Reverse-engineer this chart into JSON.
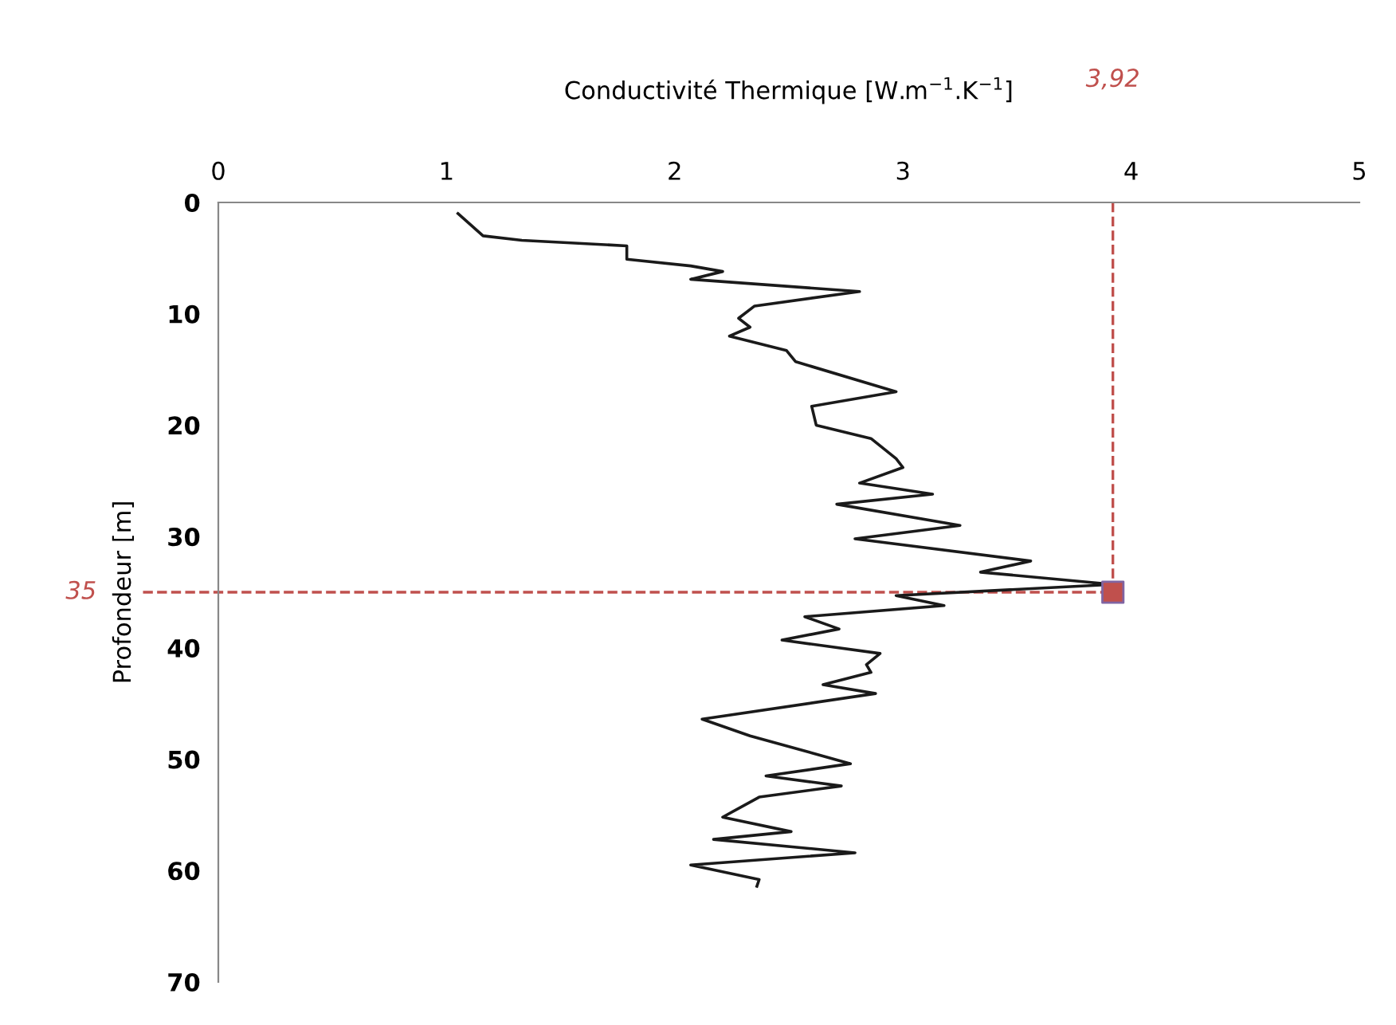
{
  "chart_data": {
    "type": "line",
    "xlabel": "Conductivité Thermique [W.m$^{−1}$.K$^{−1}$]",
    "ylabel": "Profondeur [m]",
    "xlim": [
      0,
      5
    ],
    "xticks": [
      0,
      1,
      2,
      3,
      4,
      5
    ],
    "ylim": [
      70,
      0
    ],
    "yticks": [
      0,
      10,
      20,
      30,
      40,
      50,
      60,
      70
    ],
    "grid": false,
    "marker": "none",
    "series": [
      {
        "color": "#1a1a1a",
        "x": [
          1.05,
          1.16,
          1.33,
          1.79,
          1.79,
          2.07,
          2.21,
          2.07,
          2.81,
          2.35,
          2.28,
          2.33,
          2.24,
          2.49,
          2.53,
          2.97,
          2.6,
          2.62,
          2.86,
          2.97,
          3.0,
          2.81,
          3.13,
          2.71,
          3.25,
          2.79,
          3.56,
          3.34,
          3.92,
          2.97,
          3.18,
          2.57,
          2.72,
          2.47,
          2.9,
          2.84,
          2.86,
          2.65,
          2.88,
          2.12,
          2.33,
          2.77,
          2.4,
          2.73,
          2.37,
          2.21,
          2.51,
          2.17,
          2.79,
          2.07,
          2.37,
          2.36
        ],
        "values": [
          1.0,
          3.0,
          3.4,
          3.9,
          5.1,
          5.7,
          6.2,
          6.9,
          8.0,
          9.3,
          10.4,
          11.2,
          12.0,
          13.3,
          14.3,
          17.0,
          18.3,
          20.0,
          21.2,
          23.0,
          23.8,
          25.2,
          26.2,
          27.1,
          29.0,
          30.2,
          32.2,
          33.2,
          34.3,
          35.3,
          36.2,
          37.2,
          38.3,
          39.3,
          40.5,
          41.5,
          42.2,
          43.3,
          44.1,
          46.4,
          47.9,
          50.4,
          51.5,
          52.4,
          53.4,
          55.2,
          56.5,
          57.2,
          58.4,
          59.5,
          60.8,
          61.4
        ]
      },
      {
        "type": "scatter",
        "marker": "square",
        "color": "#c0504d",
        "x": [
          3.92
        ],
        "values": [
          35
        ]
      }
    ],
    "ref_lines": [
      {
        "axis": "x",
        "value": 3.92,
        "label": "3,92",
        "color": "#c0504d",
        "line_style": "dashed"
      },
      {
        "axis": "y",
        "value": 35,
        "label": "35",
        "color": "#c0504d",
        "line_style": "dashed"
      }
    ]
  }
}
